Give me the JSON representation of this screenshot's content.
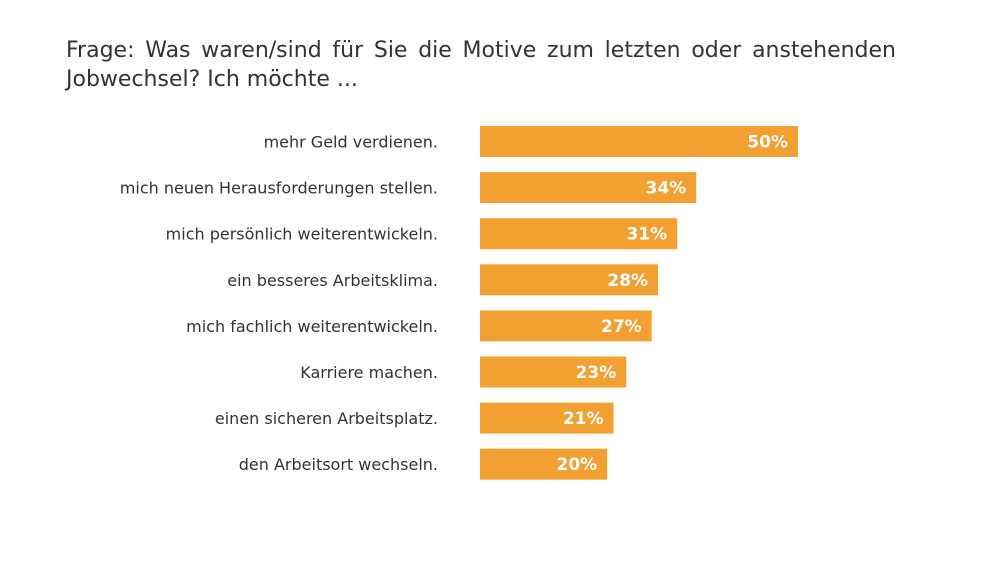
{
  "title": "Frage: Was waren/sind für Sie die Motive zum letzten oder anstehenden Jobwechsel? Ich möchte ...",
  "colors": {
    "bar": "#F3A033",
    "text": "#333333",
    "value_text": "#FFFFFF",
    "background": "#FFFFFF"
  },
  "chart_data": {
    "type": "bar",
    "orientation": "horizontal",
    "title": "Frage: Was waren/sind für Sie die Motive zum letzten oder anstehenden Jobwechsel? Ich möchte ...",
    "categories": [
      "mehr Geld verdienen.",
      "mich neuen Herausforderungen stellen.",
      "mich persönlich weiterentwickeln.",
      "ein besseres Arbeitsklima.",
      "mich fachlich weiterentwickeln.",
      "Karriere machen.",
      "einen sicheren Arbeitsplatz.",
      "den Arbeitsort wechseln."
    ],
    "values": [
      50,
      34,
      31,
      28,
      27,
      23,
      21,
      20
    ],
    "value_labels": [
      "50%",
      "34%",
      "31%",
      "28%",
      "27%",
      "23%",
      "21%",
      "20%"
    ],
    "unit": "%",
    "xlim": [
      0,
      100
    ],
    "grid": false,
    "legend": "none"
  }
}
